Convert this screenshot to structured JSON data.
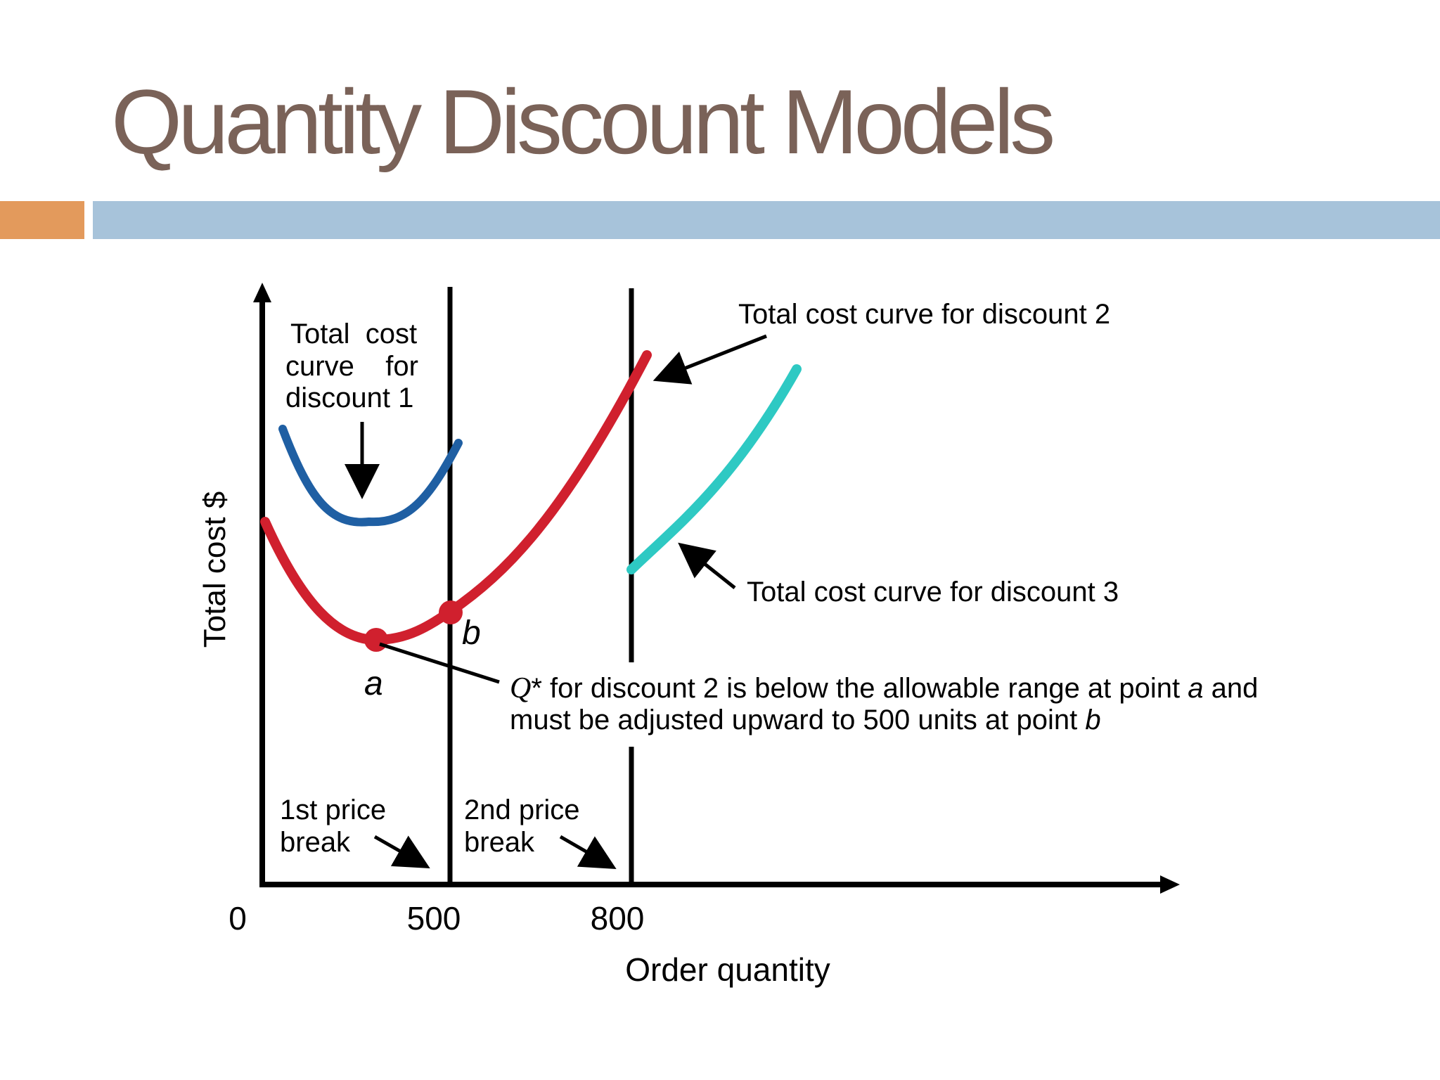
{
  "slide": {
    "title": "Quantity Discount Models",
    "accent_orange": "#e39a5c",
    "accent_blue": "#a7c3da",
    "title_color": "#7a6258"
  },
  "diagram": {
    "y_axis_label": "Total cost $",
    "x_axis_label": "Order quantity",
    "x_ticks": [
      "0",
      "500",
      "800"
    ],
    "curve1_label": [
      "Total  cost",
      "curve    for",
      "discount 1"
    ],
    "curve2_label": "Total cost curve for discount 2",
    "curve3_label": "Total cost curve for discount 3",
    "point_a": "a",
    "point_b": "b",
    "note": {
      "q": "Q",
      "line1_rest": "* for discount 2 is below the allowable range at point ",
      "line1_a": "a",
      "line1_end": " and",
      "line2": "must be adjusted upward to 500 units at point ",
      "line2_b": "b"
    },
    "break1": [
      "1st price",
      "break"
    ],
    "break2": [
      "2nd price",
      "break"
    ],
    "colors": {
      "curve1": "#1f5fa3",
      "curve2": "#d0202e",
      "curve3": "#2ec9c3"
    }
  }
}
